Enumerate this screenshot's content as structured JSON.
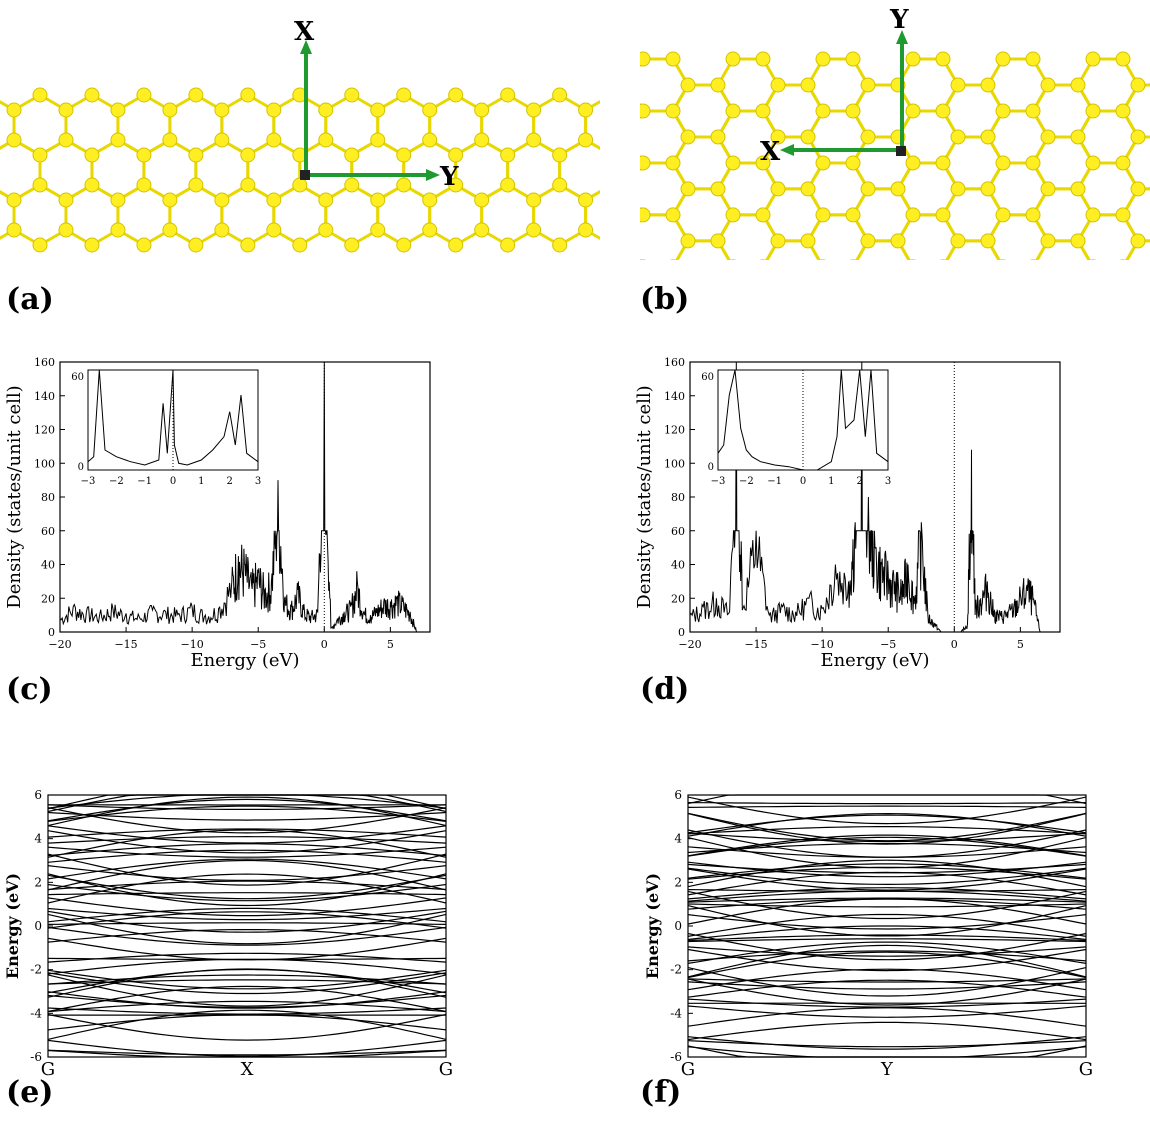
{
  "figure": {
    "panels": [
      {
        "label": "(a)"
      },
      {
        "label": "(b)"
      },
      {
        "label": "(c)"
      },
      {
        "label": "(d)"
      },
      {
        "label": "(e)"
      },
      {
        "label": "(f)"
      }
    ],
    "structure_a": {
      "axis_up_label": "X",
      "axis_right_label": "Y",
      "atom_color": "#ffee22",
      "bond_color": "#e8d800",
      "arrow_color": "#1e9a30"
    },
    "structure_b": {
      "axis_up_label": "Y",
      "axis_left_label": "X",
      "atom_color": "#ffee22",
      "bond_color": "#e8d800",
      "arrow_color": "#1e9a30"
    }
  },
  "chart_data": [
    {
      "id": "c",
      "type": "line",
      "title": "",
      "xlabel": "Energy (eV)",
      "ylabel": "Density (states/unit cell)",
      "xlim": [
        -20,
        8
      ],
      "ylim": [
        0,
        160
      ],
      "xticks": [
        "−20",
        "−15",
        "−10",
        "−5",
        "0",
        "5"
      ],
      "yticks": [
        "0",
        "20",
        "40",
        "60",
        "80",
        "100",
        "120",
        "140",
        "160"
      ],
      "fermi_level": 0,
      "series": [
        {
          "x": [
            -20,
            -19,
            -18,
            -17,
            -16,
            -15,
            -14,
            -13,
            -12,
            -11,
            -10,
            -9,
            -8,
            -7,
            -6.5,
            -6,
            -5.5,
            -5,
            -4.5,
            -4,
            -3.5,
            -3,
            -2.5,
            -2,
            -1.5,
            -1,
            -0.5,
            0,
            0.5,
            1,
            1.5,
            2,
            2.5,
            3,
            3.5,
            4,
            4.5,
            5,
            5.5,
            6,
            6.5,
            7
          ],
          "y": [
            8,
            15,
            12,
            10,
            14,
            11,
            9,
            13,
            12,
            11,
            15,
            10,
            14,
            30,
            45,
            40,
            28,
            35,
            25,
            30,
            90,
            20,
            15,
            25,
            12,
            10,
            12,
            160,
            2,
            8,
            12,
            15,
            30,
            12,
            10,
            14,
            18,
            18,
            20,
            17,
            12,
            0
          ]
        }
      ],
      "inset": {
        "xlim": [
          -3,
          3
        ],
        "ylim": [
          0,
          60
        ],
        "xticks": [
          "−3",
          "−2",
          "−1",
          "0",
          "1",
          "2",
          "3"
        ],
        "yticks": [
          "0",
          "60"
        ],
        "series": [
          {
            "x": [
              -3,
              -2.8,
              -2.6,
              -2.4,
              -2,
              -1.5,
              -1,
              -0.5,
              -0.35,
              -0.2,
              0,
              0.05,
              0.2,
              0.5,
              1,
              1.4,
              1.8,
              2,
              2.2,
              2.4,
              2.6,
              3
            ],
            "y": [
              5,
              8,
              60,
              12,
              8,
              5,
              3,
              6,
              40,
              10,
              60,
              15,
              4,
              3,
              6,
              12,
              20,
              35,
              15,
              45,
              10,
              5
            ]
          }
        ]
      }
    },
    {
      "id": "d",
      "type": "line",
      "title": "",
      "xlabel": "Energy (eV)",
      "ylabel": "Density (states/unit cell)",
      "xlim": [
        -20,
        8
      ],
      "ylim": [
        0,
        160
      ],
      "xticks": [
        "−20",
        "−15",
        "−10",
        "−5",
        "0",
        "5"
      ],
      "yticks": [
        "0",
        "20",
        "40",
        "60",
        "80",
        "100",
        "120",
        "140",
        "160"
      ],
      "fermi_level": 0,
      "series": [
        {
          "x": [
            -20,
            -19,
            -18,
            -17,
            -16.5,
            -16,
            -15,
            -14,
            -13,
            -12,
            -11,
            -10,
            -9,
            -8,
            -7.5,
            -7,
            -6.5,
            -6,
            -5.5,
            -5,
            -4.5,
            -4,
            -3.5,
            -3,
            -2.5,
            -2,
            -1.5,
            -1,
            -0.5,
            0,
            0.5,
            1,
            1.3,
            1.6,
            2,
            2.5,
            3,
            3.5,
            4,
            4.5,
            5,
            5.5,
            6,
            6.5
          ],
          "y": [
            10,
            15,
            20,
            12,
            160,
            14,
            60,
            10,
            15,
            12,
            20,
            14,
            40,
            30,
            65,
            160,
            80,
            50,
            40,
            35,
            30,
            25,
            40,
            20,
            65,
            10,
            5,
            0,
            0,
            0,
            0,
            5,
            108,
            15,
            20,
            30,
            12,
            10,
            12,
            15,
            22,
            28,
            20,
            0
          ]
        }
      ],
      "inset": {
        "xlim": [
          -3,
          3
        ],
        "ylim": [
          0,
          60
        ],
        "xticks": [
          "−3",
          "−2",
          "−1",
          "0",
          "1",
          "2",
          "3"
        ],
        "yticks": [
          "0",
          "60"
        ],
        "series": [
          {
            "x": [
              -3,
              -2.8,
              -2.6,
              -2.4,
              -2.2,
              -2,
              -1.8,
              -1.5,
              -1,
              -0.5,
              0,
              0.5,
              1,
              1.2,
              1.35,
              1.5,
              1.8,
              2,
              2.2,
              2.4,
              2.6,
              3
            ],
            "y": [
              10,
              15,
              45,
              60,
              25,
              12,
              8,
              5,
              3,
              2,
              0,
              0,
              5,
              20,
              60,
              25,
              30,
              60,
              20,
              60,
              10,
              5
            ]
          }
        ]
      }
    },
    {
      "id": "e",
      "type": "line",
      "title": "",
      "xlabel": "",
      "ylabel": "Energy (eV)",
      "ylim": [
        -6,
        6
      ],
      "xticks": [
        "G",
        "X",
        "G"
      ],
      "yticks": [
        "-6",
        "-4",
        "-2",
        "0",
        "2",
        "4",
        "6"
      ],
      "series": [
        {
          "name": "",
          "values": []
        }
      ]
    },
    {
      "id": "f",
      "type": "line",
      "title": "",
      "xlabel": "",
      "ylabel": "Energy (eV)",
      "ylim": [
        -6,
        6
      ],
      "xticks": [
        "G",
        "Y",
        "G"
      ],
      "yticks": [
        "-6",
        "-4",
        "-2",
        "0",
        "2",
        "4",
        "6"
      ],
      "series": [
        {
          "name": "",
          "values": []
        }
      ]
    }
  ]
}
